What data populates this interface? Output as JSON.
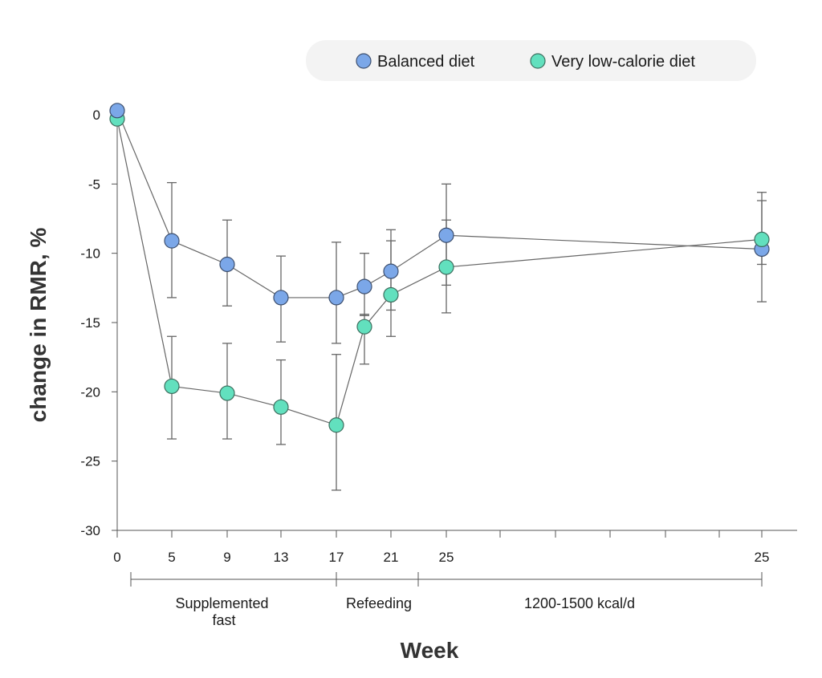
{
  "chart_data": {
    "type": "line",
    "title": "",
    "xlabel": "Week",
    "ylabel": "change in RMR, %",
    "ylim": [
      -30,
      0
    ],
    "yticks": [
      0,
      -5,
      -10,
      -15,
      -20,
      -25,
      -30
    ],
    "ytick_labels": [
      "0",
      "-5",
      "-10",
      "-15",
      "-20",
      "-25",
      "-30"
    ],
    "x_positions": [
      "0",
      "5",
      "9",
      "13",
      "17",
      "19",
      "21",
      "25",
      "25 (follow-up)"
    ],
    "xtick_labels": [
      "0",
      "5",
      "9",
      "13",
      "17",
      "21",
      "25",
      "25"
    ],
    "grid": false,
    "legend_position": "top-right",
    "phases": [
      {
        "label": "Supplemented fast"
      },
      {
        "label": "Refeeding"
      },
      {
        "label": "1200-1500 kcal/d"
      }
    ],
    "series": [
      {
        "name": "Balanced diet",
        "color": "#7BA7E8",
        "points": [
          {
            "week": "0",
            "value": 0.3,
            "err_low": null,
            "err_high": null
          },
          {
            "week": "5",
            "value": -9.1,
            "err_low": -13.2,
            "err_high": -4.9
          },
          {
            "week": "9",
            "value": -10.8,
            "err_low": -13.8,
            "err_high": -7.6
          },
          {
            "week": "13",
            "value": -13.2,
            "err_low": -16.4,
            "err_high": -10.2
          },
          {
            "week": "17",
            "value": -13.2,
            "err_low": -16.5,
            "err_high": -9.2
          },
          {
            "week": "19",
            "value": -12.4,
            "err_low": -14.5,
            "err_high": -10.0
          },
          {
            "week": "21",
            "value": -11.3,
            "err_low": -14.1,
            "err_high": -8.3
          },
          {
            "week": "25",
            "value": -8.7,
            "err_low": -12.3,
            "err_high": -5.0
          },
          {
            "week": "25 (follow-up)",
            "value": -9.7,
            "err_low": -13.5,
            "err_high": -6.2
          }
        ]
      },
      {
        "name": "Very low-calorie diet",
        "color": "#62E0BE",
        "points": [
          {
            "week": "0",
            "value": -0.3,
            "err_low": null,
            "err_high": null
          },
          {
            "week": "5",
            "value": -19.6,
            "err_low": -23.4,
            "err_high": -16.0
          },
          {
            "week": "9",
            "value": -20.1,
            "err_low": -23.4,
            "err_high": -16.5
          },
          {
            "week": "13",
            "value": -21.1,
            "err_low": -23.8,
            "err_high": -17.7
          },
          {
            "week": "17",
            "value": -22.4,
            "err_low": -27.1,
            "err_high": -17.3
          },
          {
            "week": "19",
            "value": -15.3,
            "err_low": -18.0,
            "err_high": -14.4
          },
          {
            "week": "21",
            "value": -13.0,
            "err_low": -16.0,
            "err_high": -9.1
          },
          {
            "week": "25",
            "value": -11.0,
            "err_low": -14.3,
            "err_high": -7.6
          },
          {
            "week": "25 (follow-up)",
            "value": -9.0,
            "err_low": -10.8,
            "err_high": -5.6
          }
        ]
      }
    ]
  }
}
